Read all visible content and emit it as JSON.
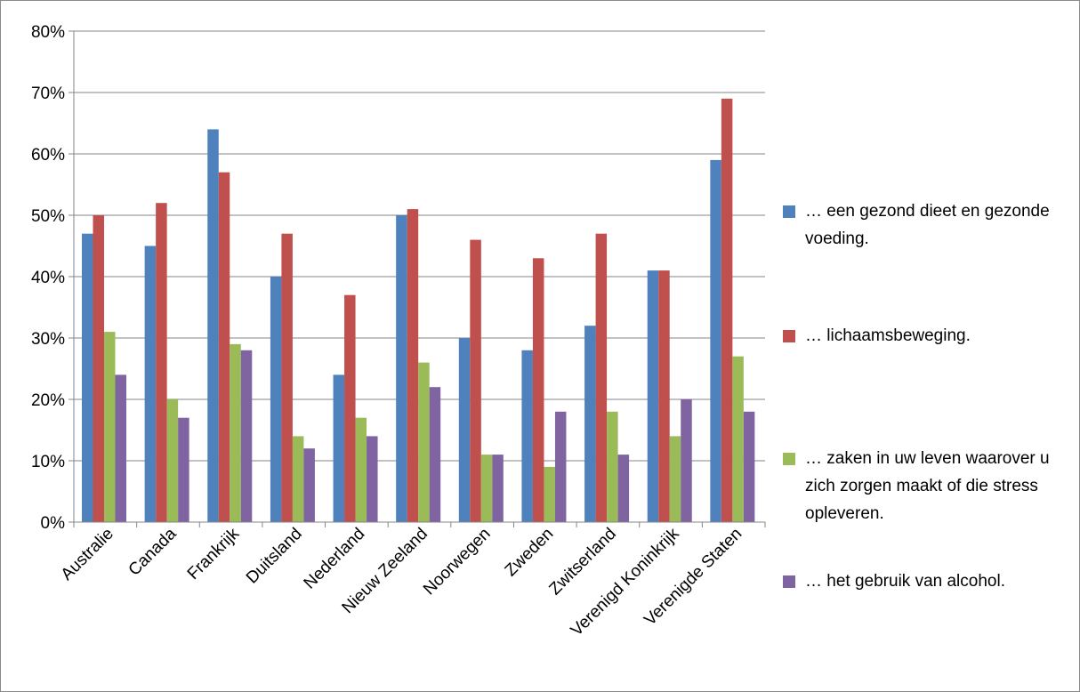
{
  "chart_data": {
    "type": "bar",
    "categories": [
      "Australie",
      "Canada",
      "Frankrijk",
      "Duitsland",
      "Nederland",
      "Nieuw Zeeland",
      "Noorwegen",
      "Zweden",
      "Zwitserland",
      "Verenigd Koninkrijk",
      "Verenigde Staten"
    ],
    "series": [
      {
        "name": "… een gezond dieet en gezonde voeding.",
        "color": "#4F81BD",
        "values": [
          47,
          45,
          64,
          40,
          24,
          50,
          30,
          28,
          32,
          41,
          59
        ]
      },
      {
        "name": "… lichaamsbeweging.",
        "color": "#C0504D",
        "values": [
          50,
          52,
          57,
          47,
          37,
          51,
          46,
          43,
          47,
          41,
          69
        ]
      },
      {
        "name": "… zaken in uw leven waarover u zich zorgen maakt of die stress opleveren.",
        "color": "#9BBB59",
        "values": [
          31,
          20,
          29,
          14,
          17,
          26,
          11,
          9,
          18,
          14,
          27
        ]
      },
      {
        "name": "… het gebruik van alcohol.",
        "color": "#8064A2",
        "values": [
          24,
          17,
          28,
          12,
          14,
          22,
          11,
          18,
          11,
          20,
          18
        ]
      }
    ],
    "y_ticks": [
      "0%",
      "10%",
      "20%",
      "30%",
      "40%",
      "50%",
      "60%",
      "70%",
      "80%"
    ],
    "ylim": [
      0,
      80
    ],
    "title": "",
    "xlabel": "",
    "ylabel": "",
    "grid": true,
    "legend_position": "right"
  }
}
